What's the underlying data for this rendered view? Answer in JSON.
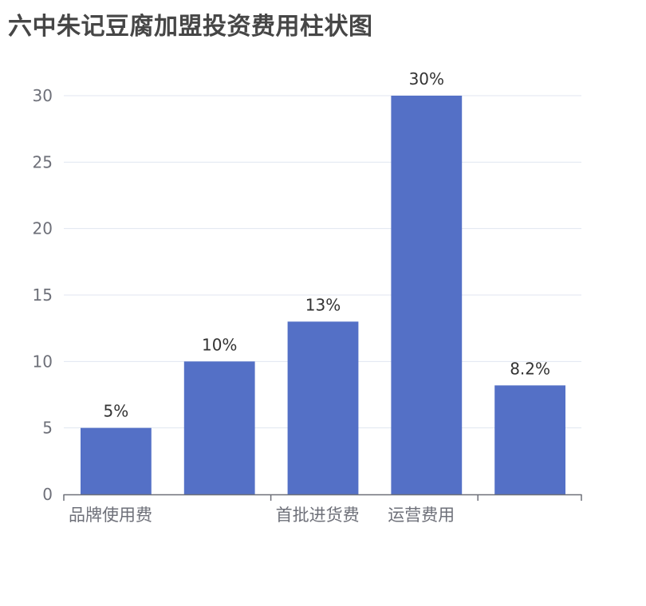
{
  "chart_data": {
    "type": "bar",
    "title": "六中朱记豆腐加盟投资费用柱状图",
    "categories": [
      "品牌使用费",
      "",
      "首批进货费",
      "",
      "运营费用"
    ],
    "visible_x_labels": [
      "品牌使用费",
      "首批进货费",
      "运营费用"
    ],
    "values": [
      5,
      10,
      13,
      30,
      8.2
    ],
    "data_labels": [
      "5%",
      "10%",
      "13%",
      "30%",
      "8.2%"
    ],
    "ylim": [
      0,
      30
    ],
    "yticks": [
      "0",
      "5",
      "10",
      "15",
      "20",
      "25",
      "30"
    ],
    "grid": true,
    "xlabel": "",
    "ylabel": "",
    "colors": {
      "bar": "#5470c6",
      "grid": "#e0e6f1",
      "axis": "#6e7079",
      "label": "#333333"
    }
  }
}
